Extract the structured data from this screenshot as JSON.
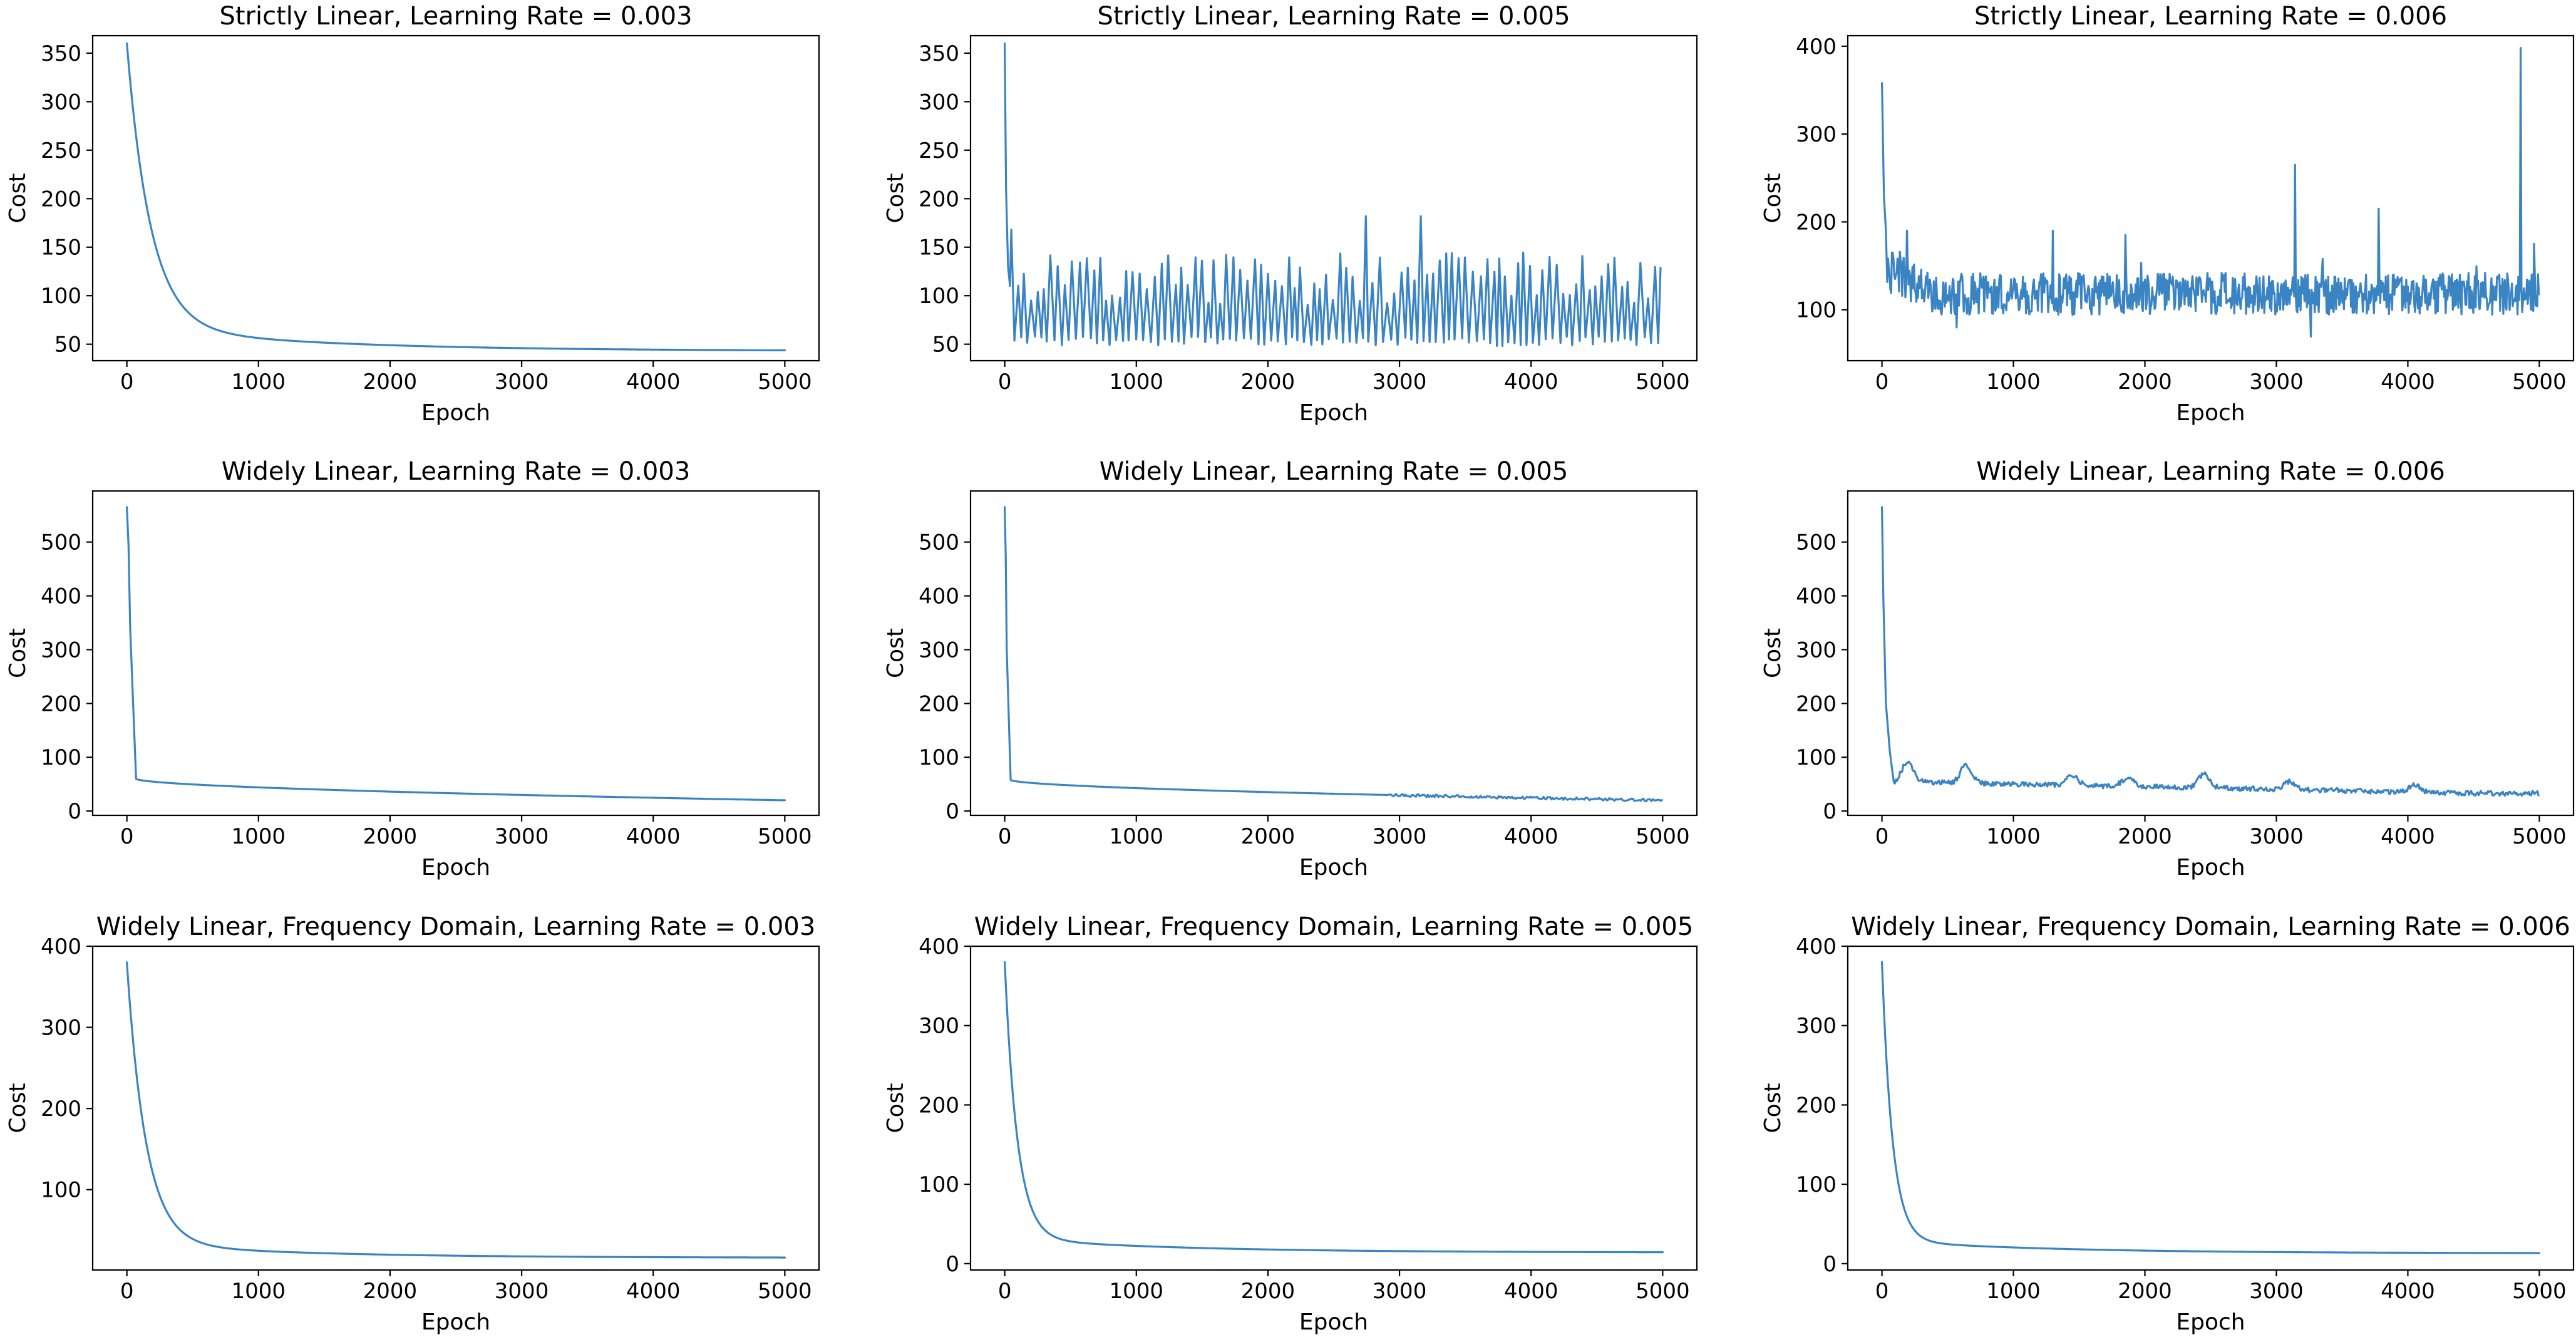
{
  "colors": {
    "series": "#3b84c4",
    "axes": "#000000",
    "background": "#ffffff"
  },
  "chart_data": [
    {
      "type": "line",
      "title": "Strictly Linear, Learning Rate = 0.003",
      "xlabel": "Epoch",
      "ylabel": "Cost",
      "xlim": [
        -260,
        5260
      ],
      "ylim": [
        33,
        368
      ],
      "xticks": [
        0,
        1000,
        2000,
        3000,
        4000,
        5000
      ],
      "yticks": [
        50,
        100,
        150,
        200,
        250,
        300,
        350
      ],
      "grid": false,
      "series": [
        {
          "kind": "decay",
          "values": {
            "start": 360,
            "end": 43,
            "tau": 180,
            "slow_amp": 25,
            "slow_tau": 1400
          }
        }
      ]
    },
    {
      "type": "line",
      "title": "Strictly Linear, Learning Rate = 0.005",
      "xlabel": "Epoch",
      "ylabel": "Cost",
      "xlim": [
        -260,
        5260
      ],
      "ylim": [
        33,
        368
      ],
      "xticks": [
        0,
        1000,
        2000,
        3000,
        4000,
        5000
      ],
      "yticks": [
        50,
        100,
        150,
        200,
        250,
        300,
        350
      ],
      "grid": false,
      "series": [
        {
          "kind": "oscillating",
          "values": {
            "start": 360,
            "base": 50,
            "peak_min": 90,
            "peak_max": 145,
            "step": 25,
            "spikes": [
              [
                60,
                168
              ],
              [
                2740,
                182
              ],
              [
                3140,
                182
              ]
            ]
          }
        }
      ]
    },
    {
      "type": "line",
      "title": "Strictly Linear, Learning Rate = 0.006",
      "xlabel": "Epoch",
      "ylabel": "Cost",
      "xlim": [
        -260,
        5260
      ],
      "ylim": [
        42,
        412
      ],
      "xticks": [
        0,
        1000,
        2000,
        3000,
        4000,
        5000
      ],
      "yticks": [
        100,
        200,
        300,
        400
      ],
      "grid": false,
      "series": [
        {
          "kind": "noisy",
          "values": {
            "start": 358,
            "center": 118,
            "amp": 24,
            "step": 6,
            "spikes": [
              [
                190,
                190
              ],
              [
                1300,
                190
              ],
              [
                1850,
                185
              ],
              [
                3140,
                265
              ],
              [
                3780,
                215
              ],
              [
                4860,
                398
              ],
              [
                4960,
                175
              ]
            ]
          }
        }
      ]
    },
    {
      "type": "line",
      "title": "Widely Linear, Learning Rate = 0.003",
      "xlabel": "Epoch",
      "ylabel": "Cost",
      "xlim": [
        -260,
        5260
      ],
      "ylim": [
        -8,
        595
      ],
      "xticks": [
        0,
        1000,
        2000,
        3000,
        4000,
        5000
      ],
      "yticks": [
        0,
        100,
        200,
        300,
        400,
        500
      ],
      "grid": false,
      "series": [
        {
          "kind": "cliff",
          "values": {
            "start": 565,
            "cliff_x": 25,
            "cliff_y": 340,
            "knee_x": 70,
            "knee_y": 60,
            "end": 20,
            "wiggle": 0
          }
        }
      ]
    },
    {
      "type": "line",
      "title": "Widely Linear, Learning Rate = 0.005",
      "xlabel": "Epoch",
      "ylabel": "Cost",
      "xlim": [
        -260,
        5260
      ],
      "ylim": [
        -8,
        595
      ],
      "xticks": [
        0,
        1000,
        2000,
        3000,
        4000,
        5000
      ],
      "yticks": [
        0,
        100,
        200,
        300,
        400,
        500
      ],
      "grid": false,
      "series": [
        {
          "kind": "cliff",
          "values": {
            "start": 565,
            "cliff_x": 15,
            "cliff_y": 300,
            "knee_x": 45,
            "knee_y": 58,
            "end": 20,
            "wiggle": 2.5
          }
        }
      ]
    },
    {
      "type": "line",
      "title": "Widely Linear, Learning Rate = 0.006",
      "xlabel": "Epoch",
      "ylabel": "Cost",
      "xlim": [
        -260,
        5260
      ],
      "ylim": [
        -8,
        595
      ],
      "xticks": [
        0,
        1000,
        2000,
        3000,
        4000,
        5000
      ],
      "yticks": [
        0,
        100,
        200,
        300,
        400,
        500
      ],
      "grid": false,
      "series": [
        {
          "kind": "bumpy",
          "values": {
            "start": 565,
            "dip_x": 120,
            "dip_y": 50,
            "end": 33,
            "bumps": [
              [
                200,
                100
              ],
              [
                640,
                97
              ],
              [
                1450,
                72
              ],
              [
                1870,
                68
              ],
              [
                2450,
                78
              ],
              [
                3100,
                60
              ],
              [
                4050,
                52
              ]
            ]
          }
        }
      ]
    },
    {
      "type": "line",
      "title": "Widely Linear, Frequency Domain, Learning Rate = 0.003",
      "xlabel": "Epoch",
      "ylabel": "Cost",
      "xlim": [
        -260,
        5260
      ],
      "ylim": [
        1,
        400
      ],
      "xticks": [
        0,
        1000,
        2000,
        3000,
        4000,
        5000
      ],
      "yticks": [
        100,
        200,
        300,
        400
      ],
      "grid": false,
      "series": [
        {
          "kind": "decay",
          "values": {
            "start": 380,
            "end": 16,
            "tau": 145,
            "slow_amp": 18,
            "slow_tau": 1300
          }
        }
      ]
    },
    {
      "type": "line",
      "title": "Widely Linear, Frequency Domain, Learning Rate = 0.005",
      "xlabel": "Epoch",
      "ylabel": "Cost",
      "xlim": [
        -260,
        5260
      ],
      "ylim": [
        -8,
        400
      ],
      "xticks": [
        0,
        1000,
        2000,
        3000,
        4000,
        5000
      ],
      "yticks": [
        0,
        100,
        200,
        300,
        400
      ],
      "grid": false,
      "series": [
        {
          "kind": "decay",
          "values": {
            "start": 380,
            "end": 14,
            "tau": 95,
            "slow_amp": 18,
            "slow_tau": 1300
          }
        }
      ]
    },
    {
      "type": "line",
      "title": "Widely Linear, Frequency Domain, Learning Rate = 0.006",
      "xlabel": "Epoch",
      "ylabel": "Cost",
      "xlim": [
        -260,
        5260
      ],
      "ylim": [
        -8,
        400
      ],
      "xticks": [
        0,
        1000,
        2000,
        3000,
        4000,
        5000
      ],
      "yticks": [
        0,
        100,
        200,
        300,
        400
      ],
      "grid": false,
      "series": [
        {
          "kind": "decay",
          "values": {
            "start": 380,
            "end": 13,
            "tau": 80,
            "slow_amp": 16,
            "slow_tau": 1300
          }
        }
      ]
    }
  ]
}
